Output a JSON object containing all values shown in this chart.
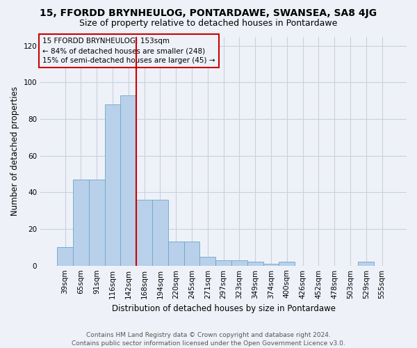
{
  "title": "15, FFORDD BRYNHEULOG, PONTARDAWE, SWANSEA, SA8 4JG",
  "subtitle": "Size of property relative to detached houses in Pontardawe",
  "xlabel": "Distribution of detached houses by size in Pontardawe",
  "ylabel": "Number of detached properties",
  "footer_line1": "Contains HM Land Registry data © Crown copyright and database right 2024.",
  "footer_line2": "Contains public sector information licensed under the Open Government Licence v3.0.",
  "annotation_line1": "15 FFORDD BRYNHEULOG: 153sqm",
  "annotation_line2": "← 84% of detached houses are smaller (248)",
  "annotation_line3": "15% of semi-detached houses are larger (45) →",
  "bar_color": "#b8d0ea",
  "bar_edge_color": "#6ea4cc",
  "vline_color": "#cc0000",
  "annotation_box_edgecolor": "#cc0000",
  "grid_color": "#c8d0e0",
  "bg_color": "#eef2f8",
  "ylim": [
    0,
    125
  ],
  "yticks": [
    0,
    20,
    40,
    60,
    80,
    100,
    120
  ],
  "categories": [
    "39sqm",
    "65sqm",
    "91sqm",
    "116sqm",
    "142sqm",
    "168sqm",
    "194sqm",
    "220sqm",
    "245sqm",
    "271sqm",
    "297sqm",
    "323sqm",
    "349sqm",
    "374sqm",
    "400sqm",
    "426sqm",
    "452sqm",
    "478sqm",
    "503sqm",
    "529sqm",
    "555sqm"
  ],
  "values": [
    10,
    47,
    47,
    88,
    93,
    36,
    36,
    13,
    13,
    5,
    3,
    3,
    2,
    1,
    2,
    0,
    0,
    0,
    0,
    2,
    0
  ],
  "vline_x": 4.5,
  "title_fontsize": 10,
  "subtitle_fontsize": 9,
  "ylabel_fontsize": 8.5,
  "xlabel_fontsize": 8.5,
  "tick_fontsize": 7.5,
  "annotation_fontsize": 7.5,
  "footer_fontsize": 6.5
}
